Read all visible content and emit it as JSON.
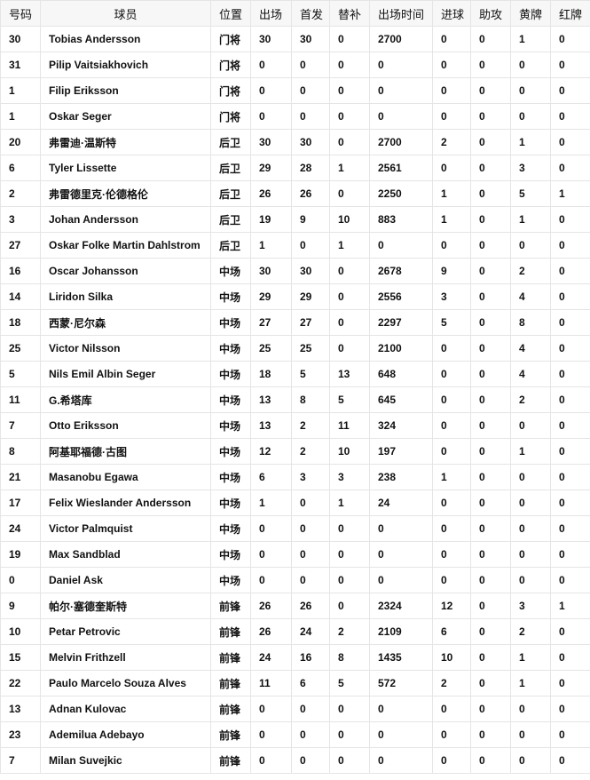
{
  "headers": [
    "号码",
    "球员",
    "位置",
    "出场",
    "首发",
    "替补",
    "出场时间",
    "进球",
    "助攻",
    "黄牌",
    "红牌"
  ],
  "rows": [
    [
      "30",
      "Tobias Andersson",
      "门将",
      "30",
      "30",
      "0",
      "2700",
      "0",
      "0",
      "1",
      "0"
    ],
    [
      "31",
      "Pilip Vaitsiakhovich",
      "门将",
      "0",
      "0",
      "0",
      "0",
      "0",
      "0",
      "0",
      "0"
    ],
    [
      "1",
      "Filip Eriksson",
      "门将",
      "0",
      "0",
      "0",
      "0",
      "0",
      "0",
      "0",
      "0"
    ],
    [
      "1",
      "Oskar Seger",
      "门将",
      "0",
      "0",
      "0",
      "0",
      "0",
      "0",
      "0",
      "0"
    ],
    [
      "20",
      "弗雷迪·温斯特",
      "后卫",
      "30",
      "30",
      "0",
      "2700",
      "2",
      "0",
      "1",
      "0"
    ],
    [
      "6",
      "Tyler Lissette",
      "后卫",
      "29",
      "28",
      "1",
      "2561",
      "0",
      "0",
      "3",
      "0"
    ],
    [
      "2",
      "弗雷德里克·伦德格伦",
      "后卫",
      "26",
      "26",
      "0",
      "2250",
      "1",
      "0",
      "5",
      "1"
    ],
    [
      "3",
      "Johan Andersson",
      "后卫",
      "19",
      "9",
      "10",
      "883",
      "1",
      "0",
      "1",
      "0"
    ],
    [
      "27",
      "Oskar Folke Martin Dahlstrom",
      "后卫",
      "1",
      "0",
      "1",
      "0",
      "0",
      "0",
      "0",
      "0"
    ],
    [
      "16",
      "Oscar Johansson",
      "中场",
      "30",
      "30",
      "0",
      "2678",
      "9",
      "0",
      "2",
      "0"
    ],
    [
      "14",
      "Liridon Silka",
      "中场",
      "29",
      "29",
      "0",
      "2556",
      "3",
      "0",
      "4",
      "0"
    ],
    [
      "18",
      "西蒙·尼尔森",
      "中场",
      "27",
      "27",
      "0",
      "2297",
      "5",
      "0",
      "8",
      "0"
    ],
    [
      "25",
      "Victor Nilsson",
      "中场",
      "25",
      "25",
      "0",
      "2100",
      "0",
      "0",
      "4",
      "0"
    ],
    [
      "5",
      "Nils Emil Albin Seger",
      "中场",
      "18",
      "5",
      "13",
      "648",
      "0",
      "0",
      "4",
      "0"
    ],
    [
      "11",
      "G.希塔库",
      "中场",
      "13",
      "8",
      "5",
      "645",
      "0",
      "0",
      "2",
      "0"
    ],
    [
      "7",
      "Otto Eriksson",
      "中场",
      "13",
      "2",
      "11",
      "324",
      "0",
      "0",
      "0",
      "0"
    ],
    [
      "8",
      "阿基耶福德·古图",
      "中场",
      "12",
      "2",
      "10",
      "197",
      "0",
      "0",
      "1",
      "0"
    ],
    [
      "21",
      "Masanobu Egawa",
      "中场",
      "6",
      "3",
      "3",
      "238",
      "1",
      "0",
      "0",
      "0"
    ],
    [
      "17",
      "Felix Wieslander Andersson",
      "中场",
      "1",
      "0",
      "1",
      "24",
      "0",
      "0",
      "0",
      "0"
    ],
    [
      "24",
      "Victor Palmquist",
      "中场",
      "0",
      "0",
      "0",
      "0",
      "0",
      "0",
      "0",
      "0"
    ],
    [
      "19",
      "Max Sandblad",
      "中场",
      "0",
      "0",
      "0",
      "0",
      "0",
      "0",
      "0",
      "0"
    ],
    [
      "0",
      "Daniel Ask",
      "中场",
      "0",
      "0",
      "0",
      "0",
      "0",
      "0",
      "0",
      "0"
    ],
    [
      "9",
      "帕尔·塞德奎斯特",
      "前锋",
      "26",
      "26",
      "0",
      "2324",
      "12",
      "0",
      "3",
      "1"
    ],
    [
      "10",
      "Petar Petrovic",
      "前锋",
      "26",
      "24",
      "2",
      "2109",
      "6",
      "0",
      "2",
      "0"
    ],
    [
      "15",
      "Melvin Frithzell",
      "前锋",
      "24",
      "16",
      "8",
      "1435",
      "10",
      "0",
      "1",
      "0"
    ],
    [
      "22",
      "Paulo Marcelo Souza Alves",
      "前锋",
      "11",
      "6",
      "5",
      "572",
      "2",
      "0",
      "1",
      "0"
    ],
    [
      "13",
      "Adnan Kulovac",
      "前锋",
      "0",
      "0",
      "0",
      "0",
      "0",
      "0",
      "0",
      "0"
    ],
    [
      "23",
      "Ademilua Adebayo",
      "前锋",
      "0",
      "0",
      "0",
      "0",
      "0",
      "0",
      "0",
      "0"
    ],
    [
      "7",
      "Milan Suvejkic",
      "前锋",
      "0",
      "0",
      "0",
      "0",
      "0",
      "0",
      "0",
      "0"
    ]
  ]
}
